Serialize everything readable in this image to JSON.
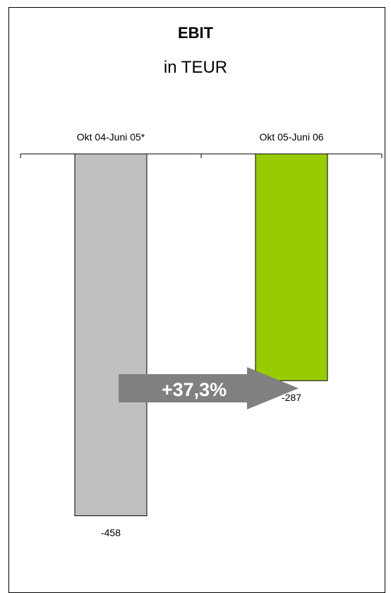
{
  "chart_data": {
    "type": "bar",
    "title": "EBIT",
    "subtitle": "in TEUR",
    "categories": [
      "Okt 04-Juni 05*",
      "Okt 05-Juni 06"
    ],
    "values": [
      -458,
      -287
    ],
    "colors": [
      "#c0c0c0",
      "#99cc00"
    ],
    "annotation": {
      "text": "+37,3%",
      "color": "#808080",
      "shape": "right-arrow"
    },
    "xlabel": "",
    "ylabel": "",
    "ylim": [
      -520,
      0
    ],
    "grid": false,
    "legend": "none",
    "axis_position": "top"
  }
}
